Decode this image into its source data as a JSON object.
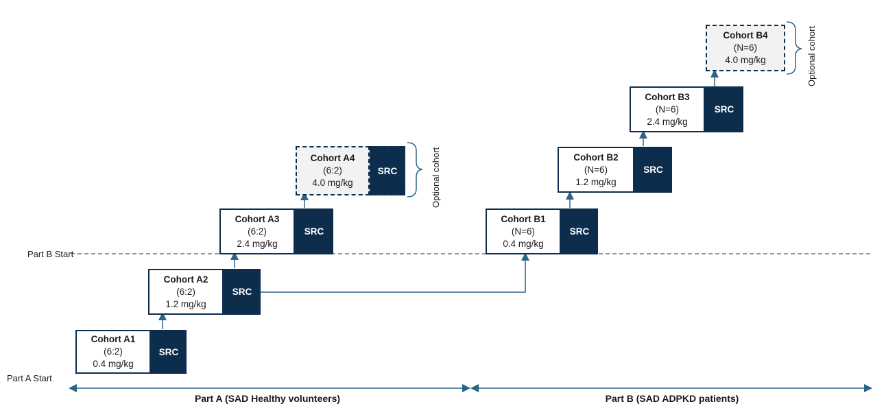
{
  "start_labels": {
    "part_a": "Part A Start",
    "part_b": "Part B Start"
  },
  "parts": {
    "part_a": "Part A (SAD Healthy volunteers)",
    "part_b": "Part B (SAD ADPKD patients)"
  },
  "src_label": "SRC",
  "optional_note": "Optional cohort",
  "cohorts": {
    "a1": {
      "title": "Cohort A1",
      "ratio": "(6:2)",
      "dose": "0.4 mg/kg"
    },
    "a2": {
      "title": "Cohort A2",
      "ratio": "(6:2)",
      "dose": "1.2 mg/kg"
    },
    "a3": {
      "title": "Cohort A3",
      "ratio": "(6:2)",
      "dose": "2.4 mg/kg"
    },
    "a4": {
      "title": "Cohort A4",
      "ratio": "(6:2)",
      "dose": "4.0 mg/kg"
    },
    "b1": {
      "title": "Cohort B1",
      "ratio": "(N=6)",
      "dose": "0.4 mg/kg"
    },
    "b2": {
      "title": "Cohort B2",
      "ratio": "(N=6)",
      "dose": "1.2 mg/kg"
    },
    "b3": {
      "title": "Cohort B3",
      "ratio": "(N=6)",
      "dose": "2.4 mg/kg"
    },
    "b4": {
      "title": "Cohort B4",
      "ratio": "(N=6)",
      "dose": "4.0 mg/kg"
    }
  },
  "colors": {
    "navy": "#0d2d4d",
    "arrow": "#2a6587",
    "optional_fill": "#f2f2f2"
  }
}
